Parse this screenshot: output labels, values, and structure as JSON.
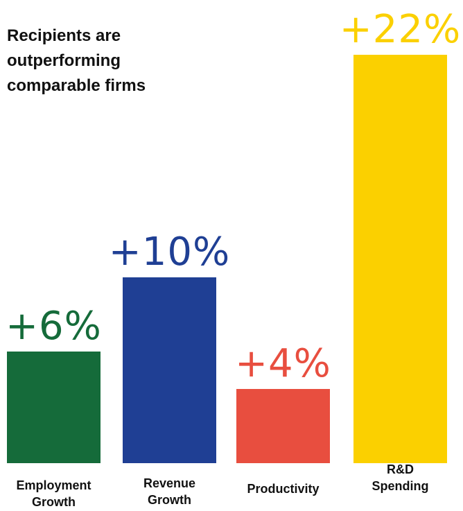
{
  "chart_data": {
    "type": "bar",
    "title": "Recipients are outperforming comparable firms",
    "categories": [
      "Employment Growth",
      "Revenue Growth",
      "Productivity",
      "R&D Spending"
    ],
    "values": [
      6,
      10,
      4,
      22
    ],
    "value_labels": [
      "+6%",
      "+10%",
      "+4%",
      "+22%"
    ],
    "colors": [
      "#156b3a",
      "#1f3f94",
      "#e84e3f",
      "#fbd000"
    ]
  }
}
